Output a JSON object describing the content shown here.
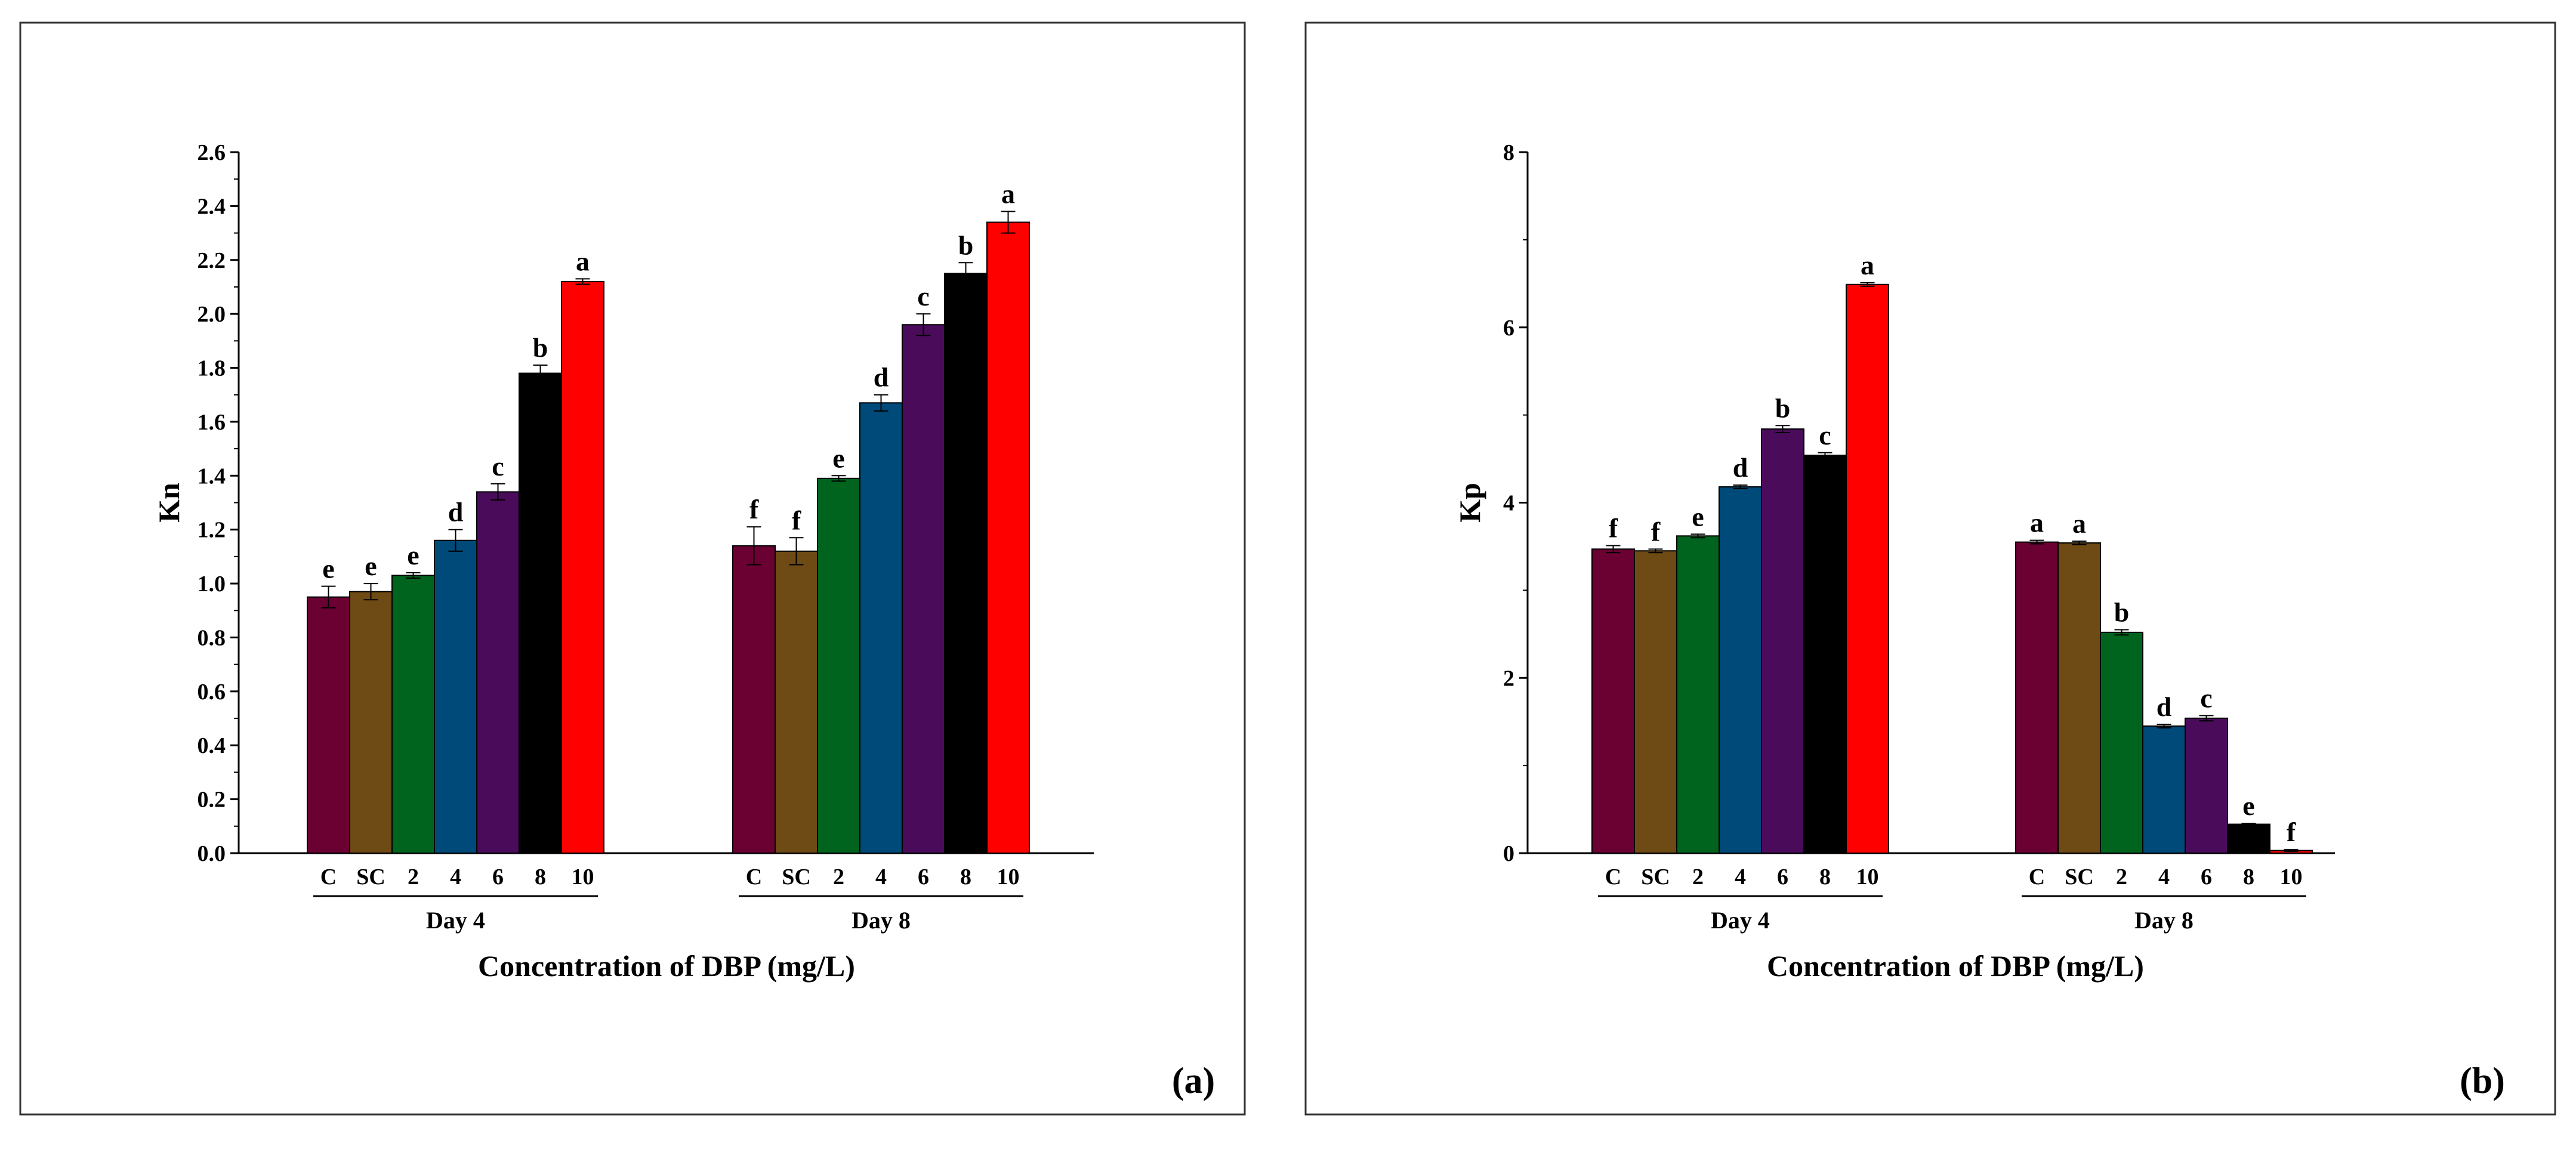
{
  "chart_data": [
    {
      "type": "bar",
      "panel": "(a)",
      "ylabel": "Kn",
      "xlabel": "Concentration of DBP (mg/L)",
      "ylim": [
        0,
        2.6
      ],
      "yticks": [
        "0.0",
        "0.2",
        "0.4",
        "0.6",
        "0.8",
        "1.0",
        "1.2",
        "1.4",
        "1.6",
        "1.8",
        "2.0",
        "2.2",
        "2.4",
        "2.6"
      ],
      "categories": [
        "C",
        "SC",
        "2",
        "4",
        "6",
        "8",
        "10"
      ],
      "colors": [
        "#6b0032",
        "#6e4a14",
        "#00641e",
        "#004a7a",
        "#4a0b5a",
        "#000000",
        "#ff0000"
      ],
      "groups": [
        {
          "name": "Day 4",
          "values": [
            0.95,
            0.97,
            1.03,
            1.16,
            1.34,
            1.78,
            2.12
          ],
          "errors": [
            0.04,
            0.03,
            0.01,
            0.04,
            0.03,
            0.03,
            0.01
          ],
          "letters": [
            "e",
            "e",
            "e",
            "d",
            "c",
            "b",
            "a"
          ]
        },
        {
          "name": "Day 8",
          "values": [
            1.14,
            1.12,
            1.39,
            1.67,
            1.96,
            2.15,
            2.34
          ],
          "errors": [
            0.07,
            0.05,
            0.01,
            0.03,
            0.04,
            0.04,
            0.04
          ],
          "letters": [
            "f",
            "f",
            "e",
            "d",
            "c",
            "b",
            "a"
          ]
        }
      ]
    },
    {
      "type": "bar",
      "panel": "(b)",
      "ylabel": "Kp",
      "xlabel": "Concentration of DBP (mg/L)",
      "ylim": [
        0,
        8
      ],
      "yticks": [
        "0",
        "2",
        "4",
        "6",
        "8"
      ],
      "categories": [
        "C",
        "SC",
        "2",
        "4",
        "6",
        "8",
        "10"
      ],
      "colors": [
        "#6b0032",
        "#6e4a14",
        "#00641e",
        "#004a7a",
        "#4a0b5a",
        "#000000",
        "#ff0000"
      ],
      "groups": [
        {
          "name": "Day 4",
          "values": [
            3.47,
            3.45,
            3.62,
            4.18,
            4.84,
            4.54,
            6.49
          ],
          "errors": [
            0.04,
            0.02,
            0.02,
            0.02,
            0.04,
            0.03,
            0.02
          ],
          "letters": [
            "f",
            "f",
            "e",
            "d",
            "b",
            "c",
            "a"
          ]
        },
        {
          "name": "Day 8",
          "values": [
            3.55,
            3.54,
            2.52,
            1.45,
            1.54,
            0.33,
            0.03
          ],
          "errors": [
            0.02,
            0.02,
            0.03,
            0.02,
            0.03,
            0.01,
            0.01
          ],
          "letters": [
            "a",
            "a",
            "b",
            "d",
            "c",
            "e",
            "f"
          ]
        }
      ]
    }
  ]
}
